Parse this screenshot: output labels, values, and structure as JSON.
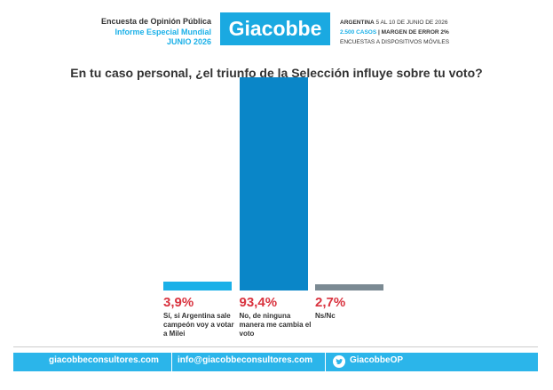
{
  "header": {
    "left": [
      "Encuesta de Opinión Pública",
      "Informe Especial Mundial",
      "JUNIO 2026"
    ],
    "logo": "Giacobbe",
    "right": [
      [
        "ARGENTINA",
        "5 AL 10 DE JUNIO DE 2026"
      ],
      [
        "2.500 CASOS",
        "MARGEN DE ERROR 2%"
      ],
      "ENCUESTAS A DISPOSITIVOS MÓVILES"
    ]
  },
  "chart_data": {
    "type": "bar",
    "title": "En tu caso personal, ¿el triunfo de la Selección influye sobre tu voto?",
    "categories": [
      "Sí, si Argentina sale campeón voy a votar a Milei",
      "No, de ninguna manera me cambia el voto",
      "Ns/Nc"
    ],
    "values": [
      3.9,
      93.4,
      2.7
    ],
    "value_labels": [
      "3,9%",
      "93,4%",
      "2,7%"
    ],
    "colors": [
      "#1ab0e8",
      "#0a86c8",
      "#7b8a93"
    ]
  },
  "footer": {
    "website": "giacobbeconsultores.com",
    "email": "info@giacobbeconsultores.com",
    "twitter": "GiacobbeOP"
  }
}
